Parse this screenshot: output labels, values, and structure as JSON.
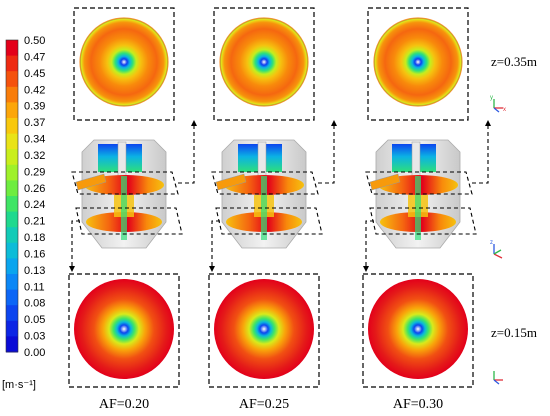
{
  "colorbar": {
    "ticks": [
      "0.50",
      "0.47",
      "0.45",
      "0.42",
      "0.39",
      "0.37",
      "0.34",
      "0.32",
      "0.29",
      "0.26",
      "0.24",
      "0.21",
      "0.18",
      "0.16",
      "0.13",
      "0.11",
      "0.08",
      "0.05",
      "0.03",
      "0.00"
    ],
    "colors": [
      "#e3001a",
      "#ee2a12",
      "#f5520d",
      "#f97d0a",
      "#fca60a",
      "#f8c80d",
      "#e9e317",
      "#c9ee1c",
      "#9ff12a",
      "#6eed40",
      "#3fe565",
      "#1fd98e",
      "#12cbb7",
      "#0cbcd8",
      "#0aa5ee",
      "#0b87f6",
      "#0c66f6",
      "#0c45ef",
      "#0c25e5",
      "#0a0bd6"
    ],
    "unit": "[m·s⁻¹]"
  },
  "panels": [
    {
      "af_label": "AF=0.20"
    },
    {
      "af_label": "AF=0.25"
    },
    {
      "af_label": "AF=0.30"
    }
  ],
  "z_labels": {
    "top": "z=0.35m",
    "bottom": "z=0.15m"
  },
  "axis_triad": {
    "x": "x",
    "y": "y",
    "z": "z"
  }
}
